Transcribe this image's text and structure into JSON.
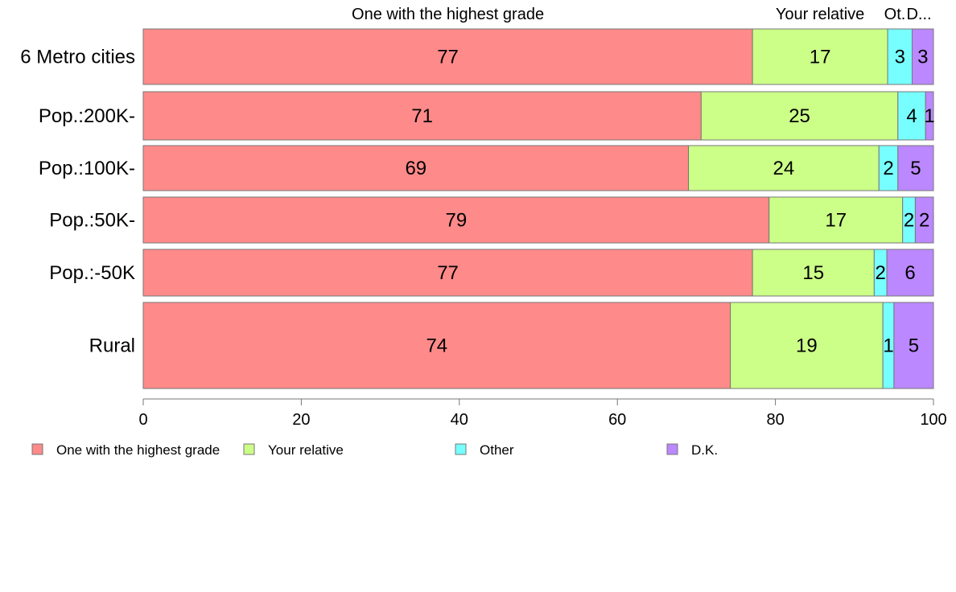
{
  "chart_data": {
    "type": "bar",
    "orientation": "horizontal",
    "stacked": true,
    "categories": [
      "6 Metro cities",
      "Pop.:200K-",
      "Pop.:100K-",
      "Pop.:50K-",
      "Pop.:-50K",
      "Rural"
    ],
    "series": [
      {
        "name": "One with the highest grade",
        "color": "#FF8A8A",
        "values": [
          77.1,
          70.6,
          69.0,
          79.2,
          77.1,
          74.3
        ]
      },
      {
        "name": "Your relative",
        "color": "#CCFF88",
        "values": [
          17.1,
          24.9,
          24.1,
          16.9,
          15.4,
          19.3
        ]
      },
      {
        "name": "Other",
        "color": "#77FFFF",
        "values": [
          3.1,
          3.5,
          2.4,
          1.6,
          1.6,
          1.4
        ]
      },
      {
        "name": "D.K.",
        "color": "#BB88FF",
        "values": [
          2.7,
          1.0,
          4.5,
          2.3,
          5.9,
          5.0
        ]
      }
    ],
    "data_labels": [
      [
        "77",
        "17",
        "3",
        "3"
      ],
      [
        "71",
        "25",
        "4",
        "1"
      ],
      [
        "69",
        "24",
        "2",
        "5"
      ],
      [
        "79",
        "17",
        "2",
        "2"
      ],
      [
        "77",
        "15",
        "2",
        "6"
      ],
      [
        "74",
        "19",
        "1",
        "5"
      ]
    ],
    "top_labels": [
      "One with the highest grade",
      "Your relative",
      "Ot.",
      "D..."
    ],
    "xlim": [
      0,
      100
    ],
    "xticks": [
      "0",
      "20",
      "40",
      "60",
      "80",
      "100"
    ],
    "grid": false,
    "legend": "bottom"
  }
}
